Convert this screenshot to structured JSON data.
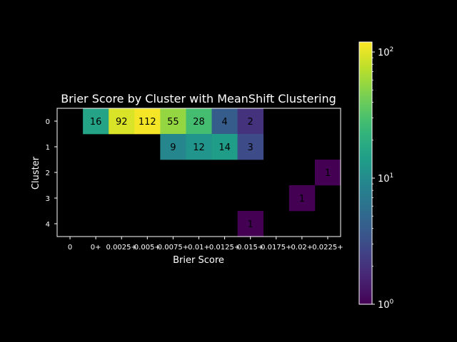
{
  "chart_data": {
    "type": "heatmap",
    "title": "Brier Score by Cluster with MeanShift Clustering",
    "xlabel": "Brier Score",
    "ylabel": "Cluster",
    "x_categories": [
      "0",
      "0+",
      "0.0025+",
      "0.005+",
      "0.0075+",
      "0.01+",
      "0.0125+",
      "0.015+",
      "0.0175+",
      "0.02+",
      "0.0225+"
    ],
    "y_categories": [
      "0",
      "1",
      "2",
      "3",
      "4"
    ],
    "values": [
      [
        null,
        16,
        92,
        112,
        55,
        28,
        4,
        2,
        null,
        null,
        null
      ],
      [
        null,
        null,
        null,
        null,
        9,
        12,
        14,
        3,
        null,
        null,
        null
      ],
      [
        null,
        null,
        null,
        null,
        null,
        null,
        null,
        null,
        null,
        null,
        1
      ],
      [
        null,
        null,
        null,
        null,
        null,
        null,
        null,
        null,
        null,
        1,
        null
      ],
      [
        null,
        null,
        null,
        null,
        null,
        null,
        null,
        1,
        null,
        null,
        null
      ]
    ],
    "colorscale": "viridis",
    "color_scale_type": "log",
    "colorbar": {
      "min": 1,
      "max": 120,
      "ticks": [
        {
          "value": 1,
          "base": "10",
          "exp": "0"
        },
        {
          "value": 10,
          "base": "10",
          "exp": "1"
        },
        {
          "value": 100,
          "base": "10",
          "exp": "2"
        }
      ]
    },
    "background": "#000000",
    "foreground": "#ffffff"
  }
}
